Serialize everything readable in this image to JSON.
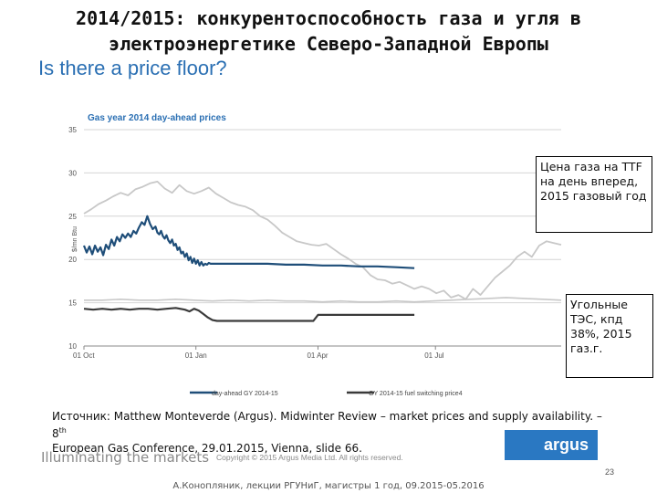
{
  "slide": {
    "title_line1": "2014/2015: конкурентоспособность газа и угля в",
    "title_line2": "электроэнергетике Северо-Западной Европы",
    "subtitle": "Is there a price floor?",
    "source_text": "Источник: Matthew Monteverde (Argus). Midwinter Review – market prices and supply availability. – 8",
    "source_sup": "th",
    "source_text2": "European Gas Conference, 29.01.2015, Vienna, slide 66.",
    "footer_left": "Illuminating the markets",
    "copyright": "Copyright © 2015 Argus Media Ltd. All rights reserved.",
    "logo": "argus",
    "page_number": "23",
    "author": "А.Конопляник, лекции РГУНиГ, магистры 1 год, 09.2015-05.2016"
  },
  "callouts": {
    "gas": "Цена газа на TTF на день вперед, 2015 газовый год",
    "coal": "Угольные ТЭС, кпд 38%, 2015 газ.г."
  },
  "colors": {
    "dayahead_2014_15": "#1f4e79",
    "fuel_switching": "#3a3a3a",
    "gy2015_gray": "#c8c8c8",
    "title_accent": "#2a6fb3"
  },
  "chart_data": {
    "type": "line",
    "title": "Gas year 2014 day-ahead prices",
    "ylabel": "$/mn Btu",
    "ylim": [
      10,
      35
    ],
    "yticks": [
      "35",
      "30",
      "25",
      "20",
      "15",
      "10"
    ],
    "xticks": [
      "01 Oct",
      "01 Jan",
      "01 Apr",
      "01 Jul"
    ],
    "grid": true,
    "legend_position": "bottom",
    "legend": [
      "day-ahead GY 2014-15",
      "GY 2014-15 fuel switching price4"
    ],
    "series": [
      {
        "name": "day-ahead GY 2014-15",
        "x": [
          0,
          3,
          6,
          9,
          12,
          15,
          18,
          21,
          24,
          27,
          30,
          33,
          36,
          39,
          42,
          45,
          48,
          51,
          54,
          57,
          60,
          63,
          66,
          69,
          72,
          75,
          78,
          80,
          82,
          84,
          86,
          88,
          90,
          92,
          94,
          96,
          98,
          100,
          102,
          104,
          106,
          108,
          110,
          112,
          114,
          116,
          118,
          120,
          122,
          124,
          126,
          128,
          130,
          132,
          134,
          136,
          138,
          140,
          145,
          160,
          180,
          200,
          220,
          240,
          260,
          280,
          300,
          320,
          340,
          360
        ],
        "y": [
          21.6,
          20.8,
          21.5,
          20.6,
          21.6,
          20.9,
          21.4,
          20.5,
          21.7,
          21.2,
          22.3,
          21.6,
          22.6,
          22.1,
          22.9,
          22.5,
          23.0,
          22.6,
          23.3,
          23.0,
          23.7,
          24.3,
          24.0,
          25.0,
          24.1,
          23.5,
          23.8,
          23.1,
          22.9,
          23.3,
          22.7,
          22.4,
          22.8,
          22.2,
          21.9,
          22.3,
          21.6,
          21.8,
          21.1,
          21.4,
          20.7,
          20.9,
          20.3,
          20.7,
          19.9,
          20.3,
          19.6,
          20.1,
          19.5,
          19.9,
          19.3,
          19.7,
          19.3,
          19.5,
          19.4,
          19.6,
          19.5,
          19.5,
          19.5,
          19.5,
          19.5,
          19.5,
          19.4,
          19.4,
          19.3,
          19.3,
          19.2,
          19.2,
          19.1,
          19.0
        ]
      },
      {
        "name": "GY 2014-15 fuel switching price4",
        "x": [
          0,
          10,
          20,
          30,
          40,
          50,
          60,
          70,
          80,
          90,
          100,
          110,
          115,
          120,
          125,
          130,
          135,
          140,
          145,
          150,
          155,
          160,
          180,
          200,
          230,
          250,
          255,
          265,
          280,
          300,
          320,
          340,
          360
        ],
        "y": [
          14.3,
          14.2,
          14.3,
          14.2,
          14.3,
          14.2,
          14.3,
          14.3,
          14.2,
          14.3,
          14.4,
          14.2,
          14.0,
          14.3,
          14.1,
          13.7,
          13.3,
          13.0,
          12.9,
          12.9,
          12.9,
          12.9,
          12.9,
          12.9,
          12.9,
          12.9,
          13.6,
          13.6,
          13.6,
          13.6,
          13.6,
          13.6,
          13.6
        ]
      },
      {
        "name": "",
        "x": [
          0,
          8,
          16,
          24,
          32,
          40,
          48,
          56,
          64,
          72,
          80,
          88,
          96,
          104,
          112,
          120,
          128,
          136,
          144,
          152,
          160,
          168,
          176,
          184,
          192,
          200,
          208,
          216,
          224,
          232,
          240,
          248,
          256,
          264,
          272,
          280,
          288,
          296,
          304,
          312,
          320,
          328,
          336,
          344,
          352,
          360,
          368,
          376,
          384,
          392,
          400,
          408,
          416,
          424,
          432,
          440,
          448,
          456,
          464,
          472,
          480,
          488,
          496,
          504,
          512,
          520
        ],
        "y": [
          25.3,
          25.8,
          26.4,
          26.8,
          27.3,
          27.7,
          27.4,
          28.1,
          28.4,
          28.8,
          29.0,
          28.2,
          27.7,
          28.6,
          27.9,
          27.6,
          27.9,
          28.3,
          27.6,
          27.1,
          26.6,
          26.3,
          26.1,
          25.7,
          25.0,
          24.6,
          23.9,
          23.1,
          22.6,
          22.1,
          21.9,
          21.7,
          21.6,
          21.8,
          21.2,
          20.6,
          20.1,
          19.5,
          19.1,
          18.2,
          17.7,
          17.6,
          17.2,
          17.4,
          17.0,
          16.6,
          16.9,
          16.6,
          16.1,
          16.4,
          15.6,
          15.9,
          15.4,
          16.6,
          15.9,
          16.9,
          17.9,
          18.6,
          19.3,
          20.3,
          20.9,
          20.3,
          21.6,
          22.1,
          21.9,
          21.7
        ]
      },
      {
        "name": "",
        "x": [
          0,
          20,
          40,
          60,
          80,
          100,
          120,
          140,
          160,
          180,
          200,
          220,
          240,
          260,
          280,
          300,
          320,
          340,
          360,
          380,
          400,
          420,
          440,
          460,
          480,
          500,
          520
        ],
        "y": [
          15.3,
          15.3,
          15.4,
          15.3,
          15.3,
          15.4,
          15.3,
          15.2,
          15.3,
          15.2,
          15.3,
          15.2,
          15.2,
          15.1,
          15.2,
          15.1,
          15.1,
          15.2,
          15.1,
          15.2,
          15.3,
          15.4,
          15.5,
          15.6,
          15.5,
          15.4,
          15.3
        ]
      }
    ]
  }
}
